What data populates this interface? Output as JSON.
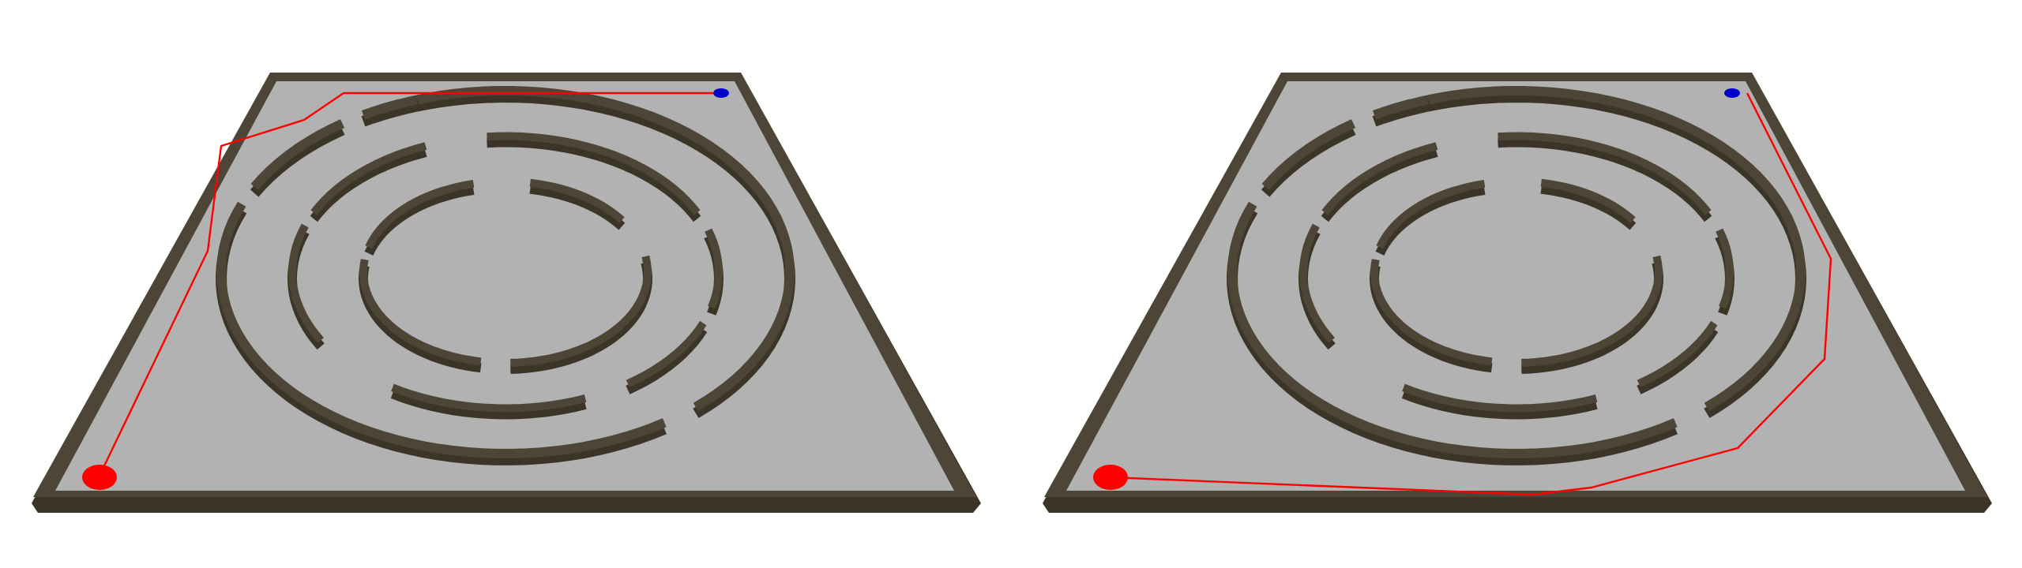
{
  "scenes": [
    {
      "id": "left",
      "floor_color": "#b2b2b2",
      "wall_color": "#4d4637",
      "wall_shade_color": "#3b3528",
      "path_color": "#ff0000",
      "start_marker_color": "#ff0000",
      "goal_marker_color": "#0000cc",
      "markers": [
        "start-marker",
        "goal-marker"
      ]
    },
    {
      "id": "right",
      "floor_color": "#b2b2b2",
      "wall_color": "#4d4637",
      "wall_shade_color": "#3b3528",
      "path_color": "#ff0000",
      "start_marker_color": "#ff0000",
      "goal_marker_color": "#0000cc",
      "markers": [
        "start-marker",
        "goal-marker"
      ]
    }
  ]
}
